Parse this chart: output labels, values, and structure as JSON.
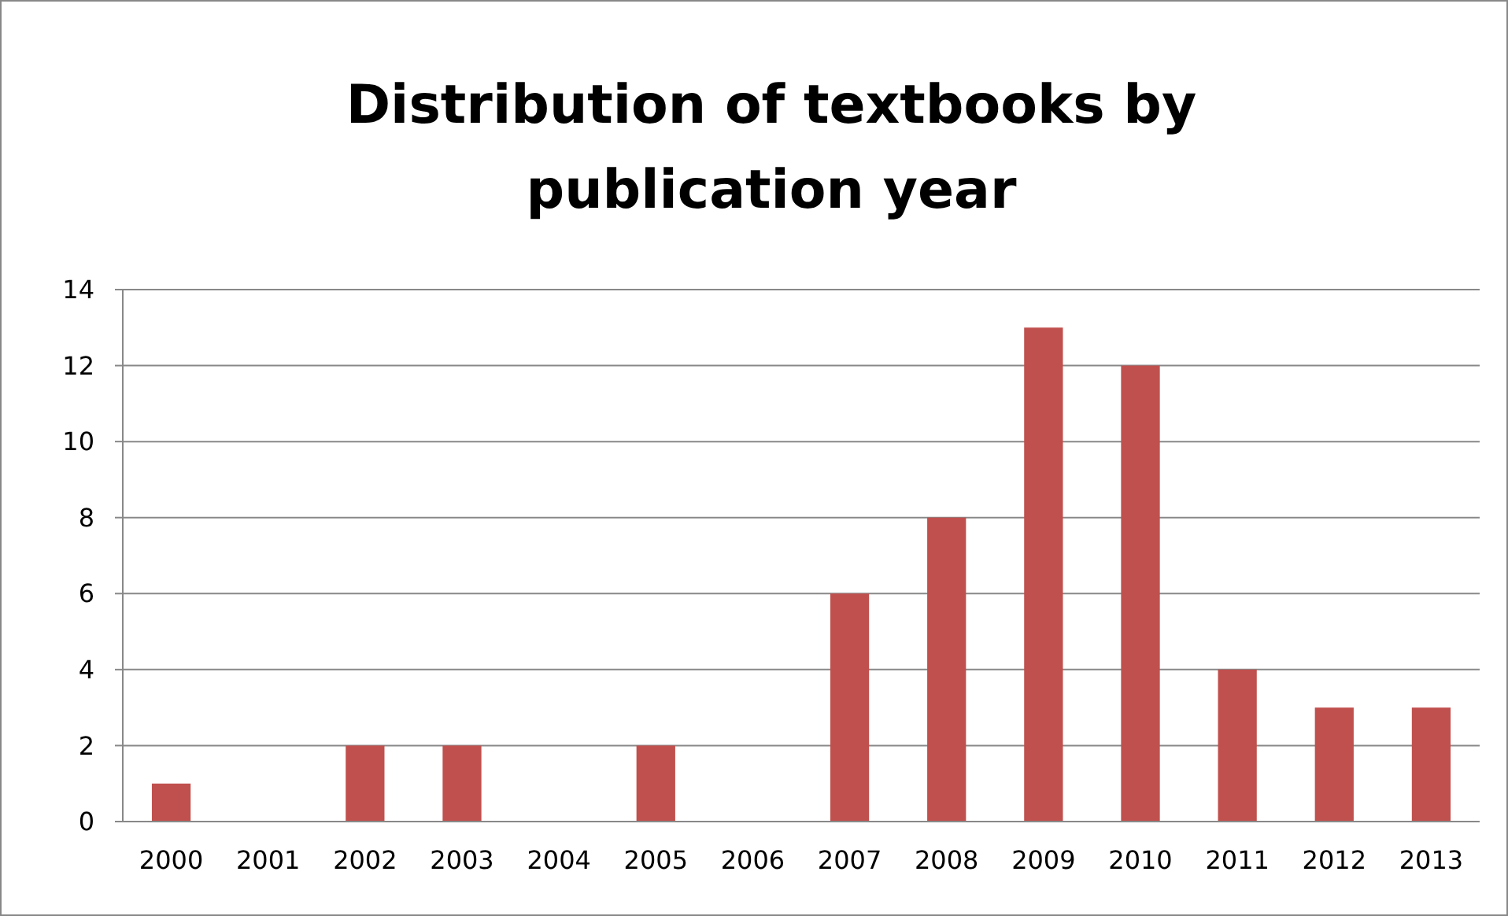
{
  "chart_data": {
    "type": "bar",
    "title": "Distribution of textbooks by publication year",
    "categories": [
      "2000",
      "2001",
      "2002",
      "2003",
      "2004",
      "2005",
      "2006",
      "2007",
      "2008",
      "2009",
      "2010",
      "2011",
      "2012",
      "2013"
    ],
    "values": [
      1,
      0,
      2,
      2,
      0,
      2,
      0,
      6,
      8,
      13,
      12,
      4,
      3,
      3
    ],
    "color": "#c0504d",
    "ylim": [
      0,
      14
    ],
    "yticks": [
      0,
      2,
      4,
      6,
      8,
      10,
      12,
      14
    ],
    "grid": "y"
  }
}
